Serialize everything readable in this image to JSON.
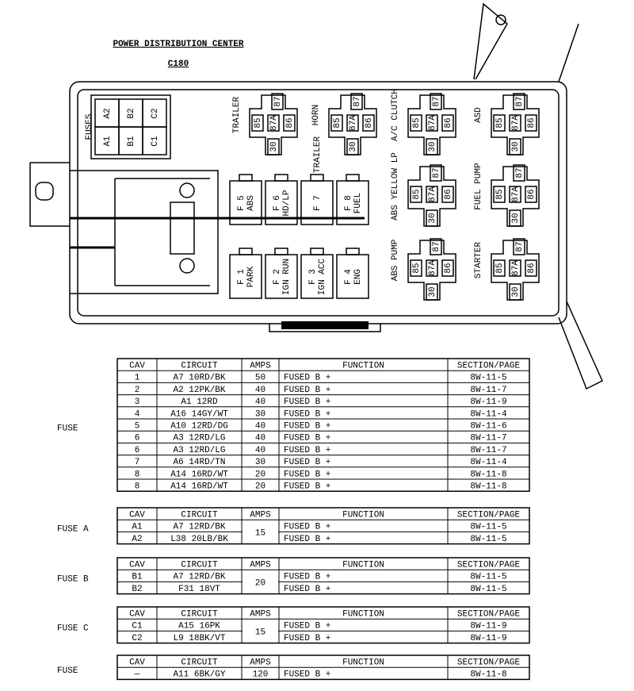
{
  "header": {
    "title": "POWER DISTRIBUTION CENTER",
    "connector": "C180"
  },
  "diagram": {
    "fuses_label": "FUSES",
    "mini_fuses": [
      "A2",
      "B2",
      "C2",
      "A1",
      "B1",
      "C1"
    ],
    "fuses": [
      {
        "id": "F 5",
        "name": "ABS"
      },
      {
        "id": "F 6",
        "name": "HD/LP"
      },
      {
        "id": "F 7"
      },
      {
        "id": "F 8",
        "name": "FUEL"
      },
      {
        "id": "F 1",
        "name": "PARK"
      },
      {
        "id": "F 2",
        "name": "IGN RUN"
      },
      {
        "id": "F 3",
        "name": "IGN ACC"
      },
      {
        "id": "F 4",
        "name": "ENG"
      }
    ],
    "relays": [
      {
        "label": "TRAILER",
        "pins": [
          "87",
          "85",
          "87A",
          "86",
          "30"
        ]
      },
      {
        "label": "HORN",
        "pins": [
          "87",
          "85",
          "87A",
          "86",
          "30"
        ]
      },
      {
        "label": "A/C CLUTCH",
        "pins": [
          "87",
          "85",
          "87A",
          "86",
          "30"
        ]
      },
      {
        "label": "ASD",
        "pins": [
          "87",
          "85",
          "87A",
          "86",
          "30"
        ]
      },
      {
        "label": "ABS YELLOW LP",
        "pins": [
          "87",
          "85",
          "87A",
          "86",
          "30"
        ]
      },
      {
        "label": "FUEL PUMP",
        "pins": [
          "87",
          "85",
          "87A",
          "86",
          "30"
        ]
      },
      {
        "label": "ABS PUMP",
        "pins": [
          "87",
          "85",
          "87A",
          "86",
          "30"
        ]
      },
      {
        "label": "STARTER",
        "pins": [
          "87",
          "85",
          "87A",
          "86",
          "30"
        ]
      }
    ],
    "extra_label": "TRAILER"
  },
  "tables": [
    {
      "label": "FUSE",
      "columns": [
        "CAV",
        "CIRCUIT",
        "AMPS",
        "FUNCTION",
        "SECTION/PAGE"
      ],
      "rows": [
        [
          "1",
          "A7 10RD/BK",
          50,
          "FUSED B +",
          "8W-11-5"
        ],
        [
          "2",
          "A2 12PK/BK",
          40,
          "FUSED B +",
          "8W-11-7"
        ],
        [
          "3",
          "A1 12RD",
          40,
          "FUSED B +",
          "8W-11-9"
        ],
        [
          "4",
          "A16 14GY/WT",
          30,
          "FUSED B +",
          "8W-11-4"
        ],
        [
          "5",
          "A10 12RD/DG",
          40,
          "FUSED B +",
          "8W-11-6"
        ],
        [
          "6",
          "A3 12RD/LG",
          40,
          "FUSED B +",
          "8W-11-7"
        ],
        [
          "6",
          "A3 12RD/LG",
          40,
          "FUSED B +",
          "8W-11-7"
        ],
        [
          "7",
          "A6 14RD/TN",
          30,
          "FUSED B +",
          "8W-11-4"
        ],
        [
          "8",
          "A14 16RD/WT",
          20,
          "FUSED B +",
          "8W-11-8"
        ],
        [
          "8",
          "A14 16RD/WT",
          20,
          "FUSED B +",
          "8W-11-8"
        ]
      ]
    },
    {
      "label": "FUSE A",
      "columns": [
        "CAV",
        "CIRCUIT",
        "AMPS",
        "FUNCTION",
        "SECTION/PAGE"
      ],
      "amps": 15,
      "rows": [
        [
          "A1",
          "A7 12RD/BK",
          "FUSED B +",
          "8W-11-5"
        ],
        [
          "A2",
          "L38 20LB/BK",
          "FUSED B +",
          "8W-11-5"
        ]
      ]
    },
    {
      "label": "FUSE B",
      "columns": [
        "CAV",
        "CIRCUIT",
        "AMPS",
        "FUNCTION",
        "SECTION/PAGE"
      ],
      "amps": 20,
      "rows": [
        [
          "B1",
          "A7 12RD/BK",
          "FUSED B +",
          "8W-11-5"
        ],
        [
          "B2",
          "F31 18VT",
          "FUSED B +",
          "8W-11-5"
        ]
      ]
    },
    {
      "label": "FUSE C",
      "columns": [
        "CAV",
        "CIRCUIT",
        "AMPS",
        "FUNCTION",
        "SECTION/PAGE"
      ],
      "amps": 15,
      "rows": [
        [
          "C1",
          "A15 16PK",
          "FUSED B +",
          "8W-11-9"
        ],
        [
          "C2",
          "L9 18BK/VT",
          "FUSED B +",
          "8W-11-9"
        ]
      ]
    },
    {
      "label": "FUSE",
      "columns": [
        "CAV",
        "CIRCUIT",
        "AMPS",
        "FUNCTION",
        "SECTION/PAGE"
      ],
      "rows": [
        [
          "—",
          "A11 6BK/GY",
          120,
          "FUSED B +",
          "8W-11-8"
        ]
      ]
    }
  ]
}
